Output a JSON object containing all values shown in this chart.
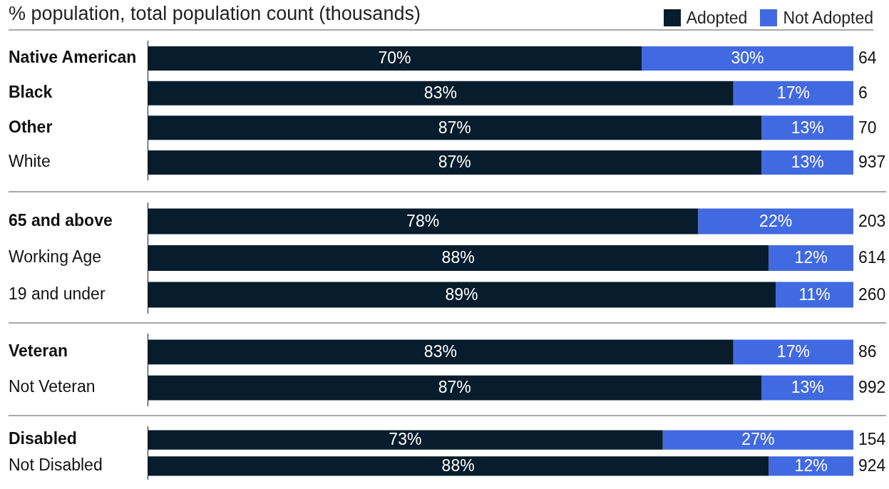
{
  "chart_data": [
    {
      "type": "bar",
      "orientation": "horizontal",
      "stacked": true,
      "subtitle": "% population, total population count (thousands)",
      "legend": "top right",
      "tick_labels": "y",
      "xlim": [
        0,
        100
      ],
      "categories": [
        "Native American",
        "Black",
        "Other",
        "White"
      ],
      "series": [
        {
          "name": "Adopted",
          "color": "#071c2c",
          "values": [
            70,
            83,
            87,
            87
          ],
          "value_labels": [
            "70%",
            "83%",
            "87%",
            "87%"
          ]
        },
        {
          "name": "Not Adopted",
          "color": "#4169e1",
          "values": [
            30,
            17,
            13,
            13
          ],
          "value_labels": [
            "30%",
            "17%",
            "13%",
            "13%"
          ]
        }
      ],
      "annotations": [
        "64",
        "6",
        "70",
        "937"
      ]
    },
    {
      "type": "bar",
      "orientation": "horizontal",
      "stacked": true,
      "tick_labels": "y",
      "xlim": [
        0,
        100
      ],
      "categories": [
        "65 and above",
        "Working Age",
        "19 and under"
      ],
      "series": [
        {
          "color": "#071c2c",
          "values": [
            78,
            88,
            89
          ],
          "value_labels": [
            "78%",
            "88%",
            "89%"
          ]
        },
        {
          "color": "#4169e1",
          "values": [
            22,
            12,
            11
          ],
          "value_labels": [
            "22%",
            "12%",
            "11%"
          ]
        }
      ],
      "annotations": [
        "203",
        "614",
        "260"
      ]
    },
    {
      "type": "bar",
      "orientation": "horizontal",
      "stacked": true,
      "tick_labels": "y",
      "xlim": [
        0,
        100
      ],
      "categories": [
        "Veteran",
        "Not Veteran"
      ],
      "series": [
        {
          "color": "#071c2c",
          "values": [
            83,
            87
          ],
          "value_labels": [
            "83%",
            "87%"
          ]
        },
        {
          "color": "#4169e1",
          "values": [
            17,
            13
          ],
          "value_labels": [
            "17%",
            "13%"
          ]
        }
      ],
      "annotations": [
        "86",
        "992"
      ]
    },
    {
      "type": "bar",
      "orientation": "horizontal",
      "stacked": true,
      "tick_labels": "y",
      "xlim": [
        0,
        100
      ],
      "categories": [
        "Disabled",
        "Not Disabled"
      ],
      "series": [
        {
          "color": "#071c2c",
          "values": [
            73,
            88
          ],
          "value_labels": [
            "73%",
            "88%"
          ]
        },
        {
          "color": "#4169e1",
          "values": [
            27,
            12
          ],
          "value_labels": [
            "27%",
            "12%"
          ]
        }
      ],
      "annotations": [
        "154",
        "924"
      ]
    }
  ]
}
